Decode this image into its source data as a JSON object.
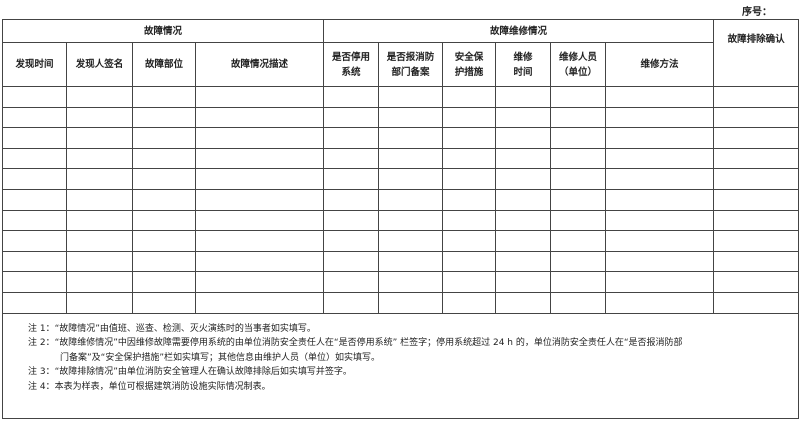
{
  "serial_label": "序号：",
  "header": {
    "group_fault": "故障情况",
    "group_repair": "故障维修情况",
    "confirm": "故障排除确认",
    "columns": [
      "发现时间",
      "发现人签名",
      "故障部位",
      "故障情况描述",
      "是否停用系统",
      "是否报消防部门备案",
      "安全保护措施",
      "维修时间",
      "维修人员（单位）",
      "维修方法"
    ]
  },
  "notes": [
    "注 1：“故障情况”由值班、巡查、检测、灭火演练时的当事者如实填写。",
    "注 2：“故障维修情况”中因维修故障需要停用系统的由单位消防安全责任人在“是否停用系统” 栏签字；停用系统超过 24 h 的，单位消防安全责任人在“是否报消防部",
    "门备案”及“安全保护措施”栏如实填写；其他信息由维护人员（单位）如实填写。",
    "注 3：“故障排除情况”由单位消防安全管理人在确认故障排除后如实填写并签字。",
    "注 4：本表为样表，单位可根据建筑消防设施实际情况制表。"
  ]
}
